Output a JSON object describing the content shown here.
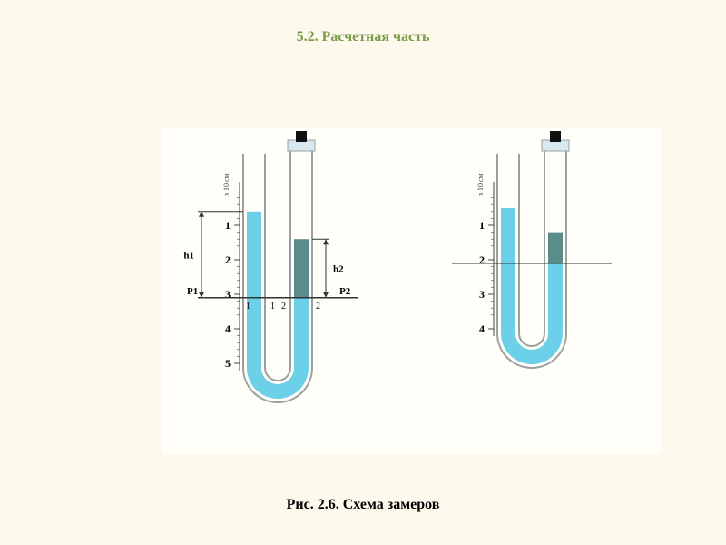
{
  "title": "5.2. Расчетная часть",
  "caption": "Рис. 2.6. Схема замеров",
  "colors": {
    "page_bg": "#fdf9ec",
    "diagram_bg": "#fffef9",
    "title_color": "#7a9b4a",
    "liquid1": "#6bd0e8",
    "liquid2": "#5a8c8a",
    "tube_stroke": "#9aa0a0",
    "scale_stroke": "#444444",
    "p_line": "#333333",
    "text_color": "#000000",
    "cap_dark": "#111111",
    "cap_light": "#d8e8f0"
  },
  "left_diagram": {
    "scale_numbers": [
      "1",
      "2",
      "3",
      "4",
      "5"
    ],
    "scale_unit": "х 10 см.",
    "left_level_scale": 0.6,
    "right_level_outer_scale": 1.4,
    "right_level_inner_scale": 3.1,
    "pline_scale": 3.1,
    "labels": {
      "h1": "h1",
      "h2": "h2",
      "p1": "P1",
      "p2": "P2",
      "btm": [
        "1",
        "1",
        "2",
        "2"
      ]
    }
  },
  "right_diagram": {
    "scale_numbers": [
      "1",
      "2",
      "3",
      "4"
    ],
    "scale_unit": "х 10 см.",
    "left_level_scale": 0.5,
    "right_level_outer_scale": 1.2,
    "right_level_inner_scale": 2.1,
    "pline_scale": 2.1
  },
  "typography": {
    "title_fontsize": 16,
    "caption_fontsize": 16,
    "label_fontsize": 12,
    "small_label_fontsize": 10
  }
}
